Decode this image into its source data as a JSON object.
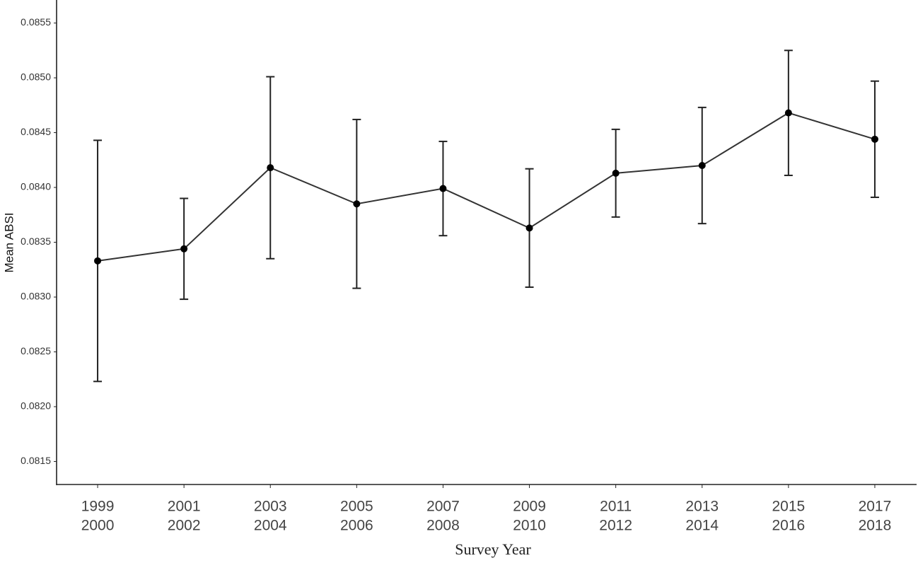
{
  "chart_data": {
    "type": "line",
    "y_label": "Mean ABSI",
    "x_label": "Survey Year",
    "categories": [
      [
        "1999",
        "2000"
      ],
      [
        "2001",
        "2002"
      ],
      [
        "2003",
        "2004"
      ],
      [
        "2005",
        "2006"
      ],
      [
        "2007",
        "2008"
      ],
      [
        "2009",
        "2010"
      ],
      [
        "2011",
        "2012"
      ],
      [
        "2013",
        "2014"
      ],
      [
        "2015",
        "2016"
      ],
      [
        "2017",
        "2018"
      ]
    ],
    "values": [
      0.08333,
      0.08344,
      0.08418,
      0.08385,
      0.08399,
      0.08363,
      0.08413,
      0.0842,
      0.08468,
      0.08444
    ],
    "errors": [
      0.0011,
      0.00046,
      0.00083,
      0.00077,
      0.00043,
      0.00054,
      0.0004,
      0.00053,
      0.00057,
      0.00053
    ],
    "color": "#333333",
    "ylim": [
      0.08129,
      0.08571
    ],
    "yticks": [
      0.0815,
      {
        "value": 0.082,
        "label": "0.0820"
      },
      0.0825,
      {
        "value": 0.083,
        "label": "0.0830"
      },
      0.0835,
      {
        "value": 0.084,
        "label": "0.0840"
      },
      0.0845,
      {
        "value": 0.085,
        "label": "0.0850"
      },
      0.0855
    ],
    "grid": false
  }
}
